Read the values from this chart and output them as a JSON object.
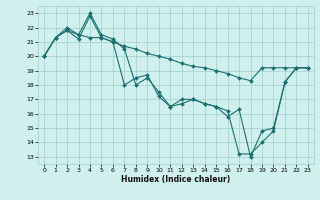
{
  "xlabel": "Humidex (Indice chaleur)",
  "xlim": [
    -0.5,
    23.5
  ],
  "ylim": [
    12.5,
    23.5
  ],
  "xticks": [
    0,
    1,
    2,
    3,
    4,
    5,
    6,
    7,
    8,
    9,
    10,
    11,
    12,
    13,
    14,
    15,
    16,
    17,
    18,
    19,
    20,
    21,
    22,
    23
  ],
  "yticks": [
    13,
    14,
    15,
    16,
    17,
    18,
    19,
    20,
    21,
    22,
    23
  ],
  "bg_color": "#cff0ec",
  "grid_color": "#9ecece",
  "line_color": "#1e7070",
  "series": [
    {
      "x": [
        0,
        1,
        2,
        3,
        4,
        5,
        6,
        7,
        8,
        9,
        10,
        11,
        12,
        13,
        14,
        15,
        16,
        17,
        18,
        19,
        20,
        21,
        22,
        23
      ],
      "y": [
        20.0,
        21.3,
        21.8,
        21.5,
        21.3,
        21.3,
        21.0,
        20.7,
        20.5,
        20.2,
        20.0,
        19.8,
        19.5,
        19.3,
        19.2,
        19.0,
        18.8,
        18.5,
        18.3,
        19.2,
        19.2,
        19.2,
        19.2,
        19.2
      ]
    },
    {
      "x": [
        0,
        1,
        2,
        3,
        4,
        5,
        6,
        7,
        8,
        9,
        10,
        11,
        12,
        13,
        14,
        15,
        16,
        17,
        18,
        19,
        20,
        21,
        22,
        23
      ],
      "y": [
        20.0,
        21.3,
        22.0,
        21.5,
        23.0,
        21.5,
        21.2,
        20.5,
        18.0,
        18.5,
        17.5,
        16.5,
        17.0,
        17.0,
        16.7,
        16.5,
        15.8,
        16.3,
        13.0,
        14.8,
        15.0,
        18.2,
        19.2,
        19.2
      ]
    },
    {
      "x": [
        0,
        1,
        2,
        3,
        4,
        5,
        6,
        7,
        8,
        9,
        10,
        11,
        12,
        13,
        14,
        15,
        16,
        17,
        18,
        19,
        20,
        21,
        22,
        23
      ],
      "y": [
        20.0,
        21.3,
        21.8,
        21.2,
        22.8,
        21.3,
        21.0,
        18.0,
        18.5,
        18.7,
        17.2,
        16.5,
        16.7,
        17.0,
        16.7,
        16.5,
        16.2,
        13.2,
        13.2,
        14.0,
        14.8,
        18.2,
        19.2,
        19.2
      ]
    }
  ]
}
